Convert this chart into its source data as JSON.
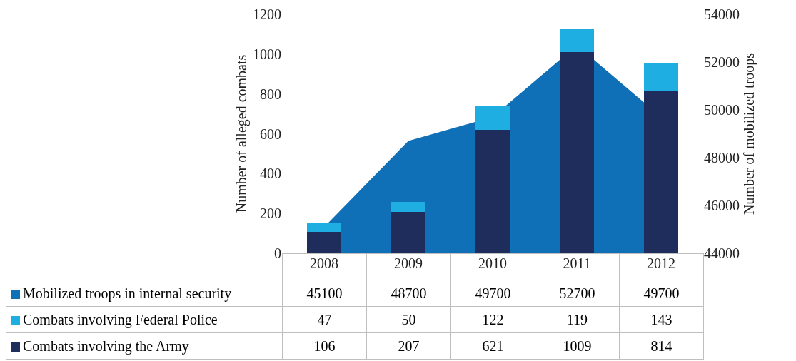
{
  "chart_data": {
    "type": "bar",
    "categories": [
      "2008",
      "2009",
      "2010",
      "2011",
      "2012"
    ],
    "ylabel": "Number of alleged combats",
    "y2label": "Number of mobilized troops",
    "ylim": [
      0,
      1200
    ],
    "yticks": [
      0,
      200,
      400,
      600,
      800,
      1000,
      1200
    ],
    "y2lim": [
      44000,
      54000
    ],
    "y2ticks": [
      44000,
      46000,
      48000,
      50000,
      52000,
      54000
    ],
    "stacked": true,
    "data_labels": true,
    "legend": "bottom left",
    "grid": false,
    "series": [
      {
        "name": "Combats involving the Army",
        "color": "#1f2d5c",
        "values": [
          106,
          207,
          621,
          1009,
          814
        ]
      },
      {
        "name": "Combats involving Federal Police",
        "color": "#1eaee2",
        "values": [
          47,
          50,
          122,
          119,
          143
        ]
      },
      {
        "name": "Mobilized troops in internal security",
        "type": "area",
        "axis": "y2",
        "color": "#0f70b7",
        "values": [
          45100,
          48700,
          49700,
          52700,
          49700
        ]
      }
    ]
  }
}
